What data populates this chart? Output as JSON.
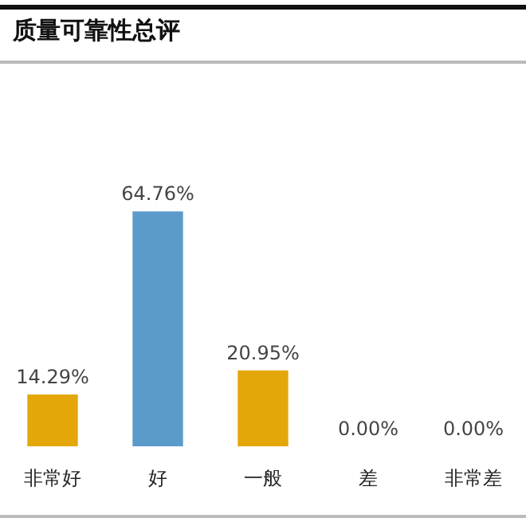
{
  "chart_data": {
    "type": "bar",
    "title": "质量可靠性总评",
    "categories": [
      "非常好",
      "好",
      "一般",
      "差",
      "非常差"
    ],
    "values": [
      14.29,
      64.76,
      20.95,
      0,
      0
    ],
    "colors": [
      "#e4a70a",
      "#5b9bcb",
      "#e4a70a",
      "#e4a70a",
      "#e4a70a"
    ],
    "value_labels": [
      "14.29%",
      "64.76%",
      "20.95%",
      "0.00%",
      "0.00%"
    ],
    "grid": false
  }
}
